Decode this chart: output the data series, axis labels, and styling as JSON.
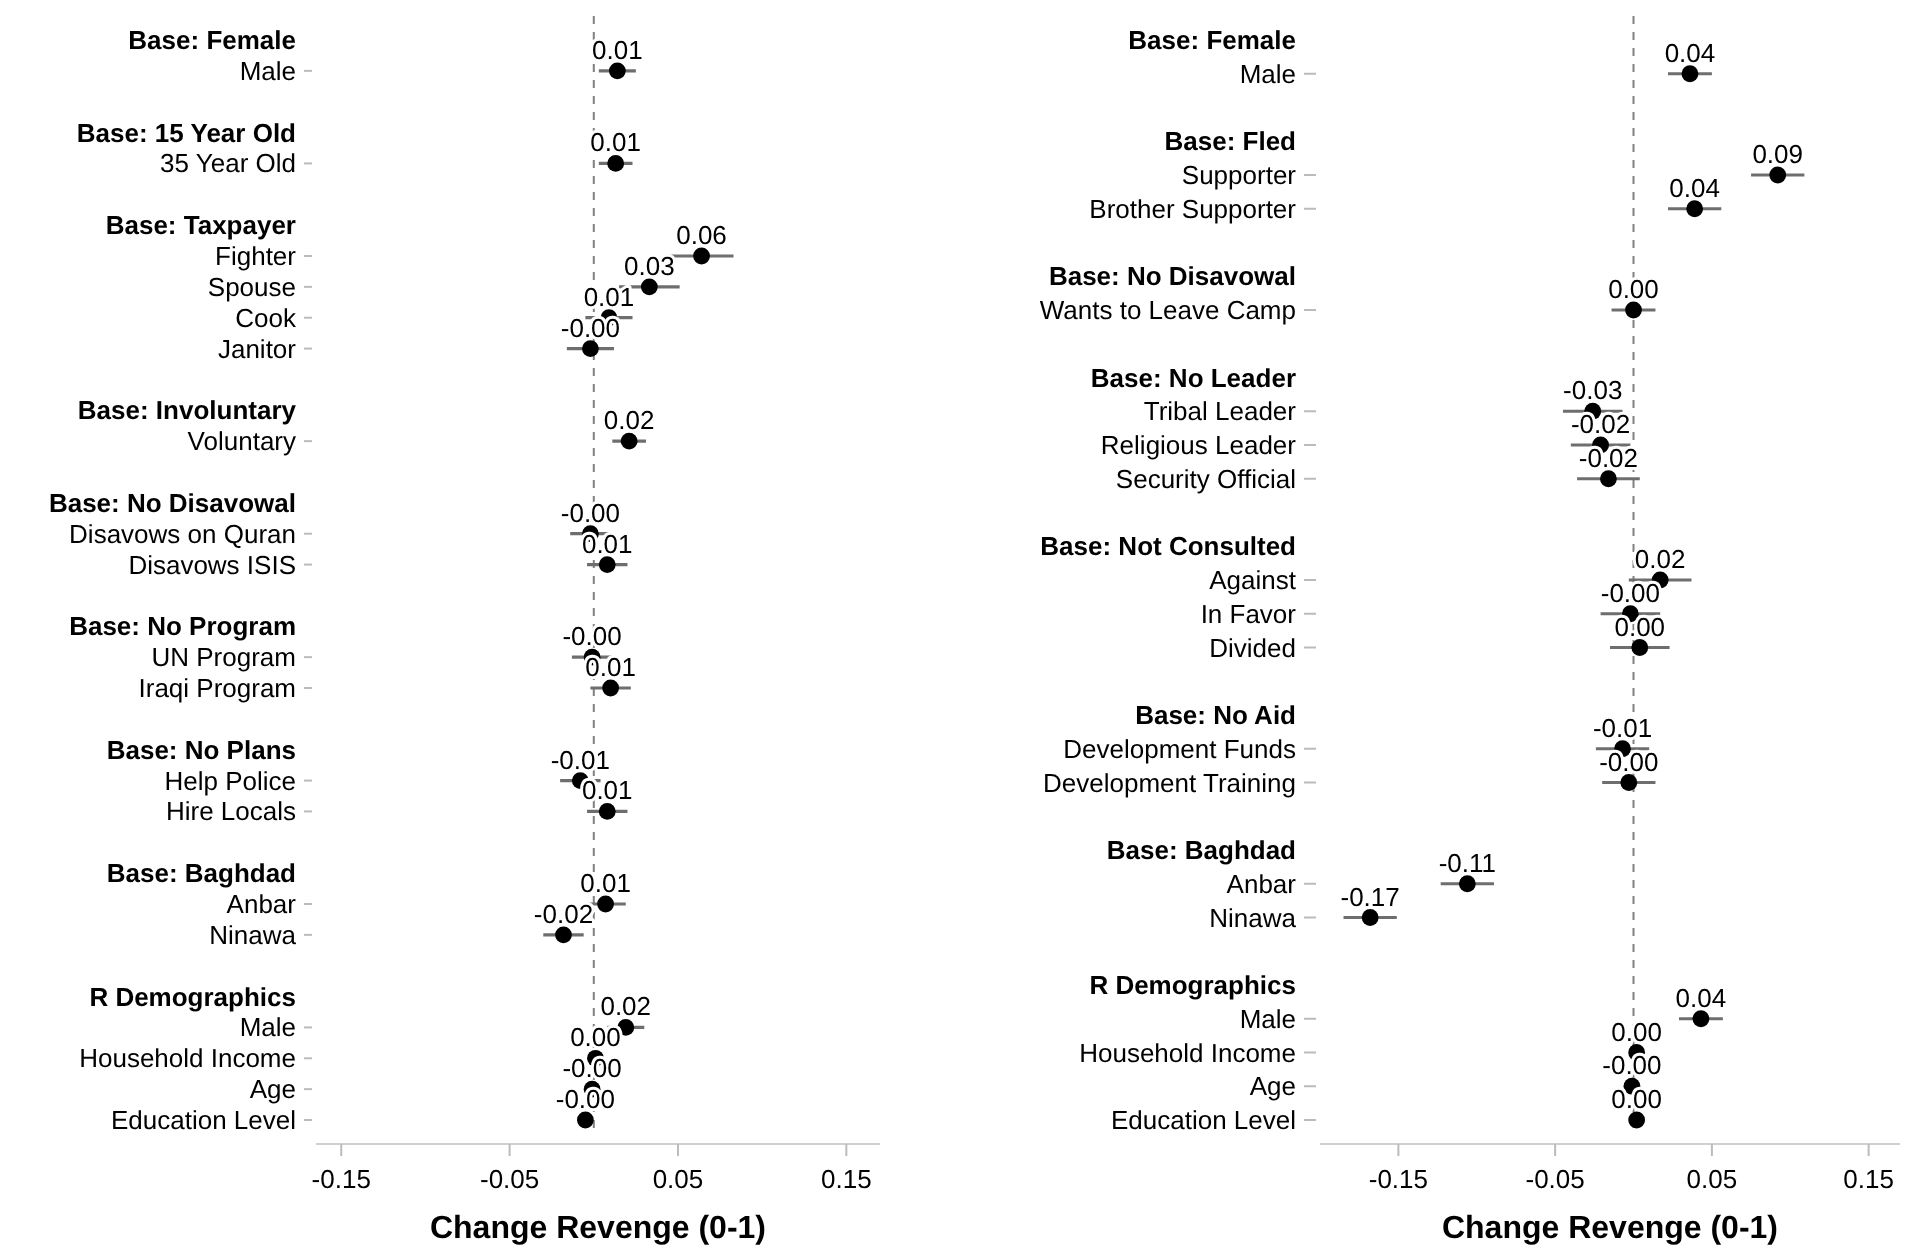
{
  "chart_data": [
    {
      "type": "scatter",
      "orientation": "horizontal",
      "marker": "circle",
      "xlabel": "Change Revenge (0-1)",
      "xlim": [
        -0.165,
        0.17
      ],
      "xticks": [
        -0.15,
        -0.05,
        0.05,
        0.15
      ],
      "ref_lines": [
        {
          "axis": "x",
          "value": 0,
          "line_style": "dashed",
          "color": "#808080"
        }
      ],
      "categories": [
        "Base: Female",
        "Male",
        null,
        "Base: 15 Year Old",
        "35 Year Old",
        null,
        "Base: Taxpayer",
        "Fighter",
        "Spouse",
        "Cook",
        "Janitor",
        null,
        "Base: Involuntary",
        "Voluntary",
        null,
        "Base: No Disavowal",
        "Disavows on Quran",
        "Disavows ISIS",
        null,
        "Base: No Program",
        "UN Program",
        "Iraqi Program",
        null,
        "Base: No Plans",
        "Help Police",
        "Hire Locals",
        null,
        "Base: Baghdad",
        "Anbar",
        "Ninawa",
        null,
        "R Demographics",
        "Male",
        "Household Income",
        "Age",
        "Education Level"
      ],
      "series": [
        {
          "color": "#000000",
          "values": [
            null,
            0.014,
            null,
            null,
            0.013,
            null,
            null,
            0.064,
            0.033,
            0.009,
            -0.002,
            null,
            null,
            0.021,
            null,
            null,
            -0.002,
            0.008,
            null,
            null,
            -0.001,
            0.01,
            null,
            null,
            -0.008,
            0.008,
            null,
            null,
            0.007,
            -0.018,
            null,
            null,
            0.019,
            0.001,
            -0.001,
            -0.005
          ],
          "errors": [
            null,
            0.011,
            null,
            null,
            0.01,
            null,
            null,
            0.019,
            0.018,
            0.014,
            0.014,
            null,
            null,
            0.01,
            null,
            null,
            0.012,
            0.012,
            null,
            null,
            0.012,
            0.012,
            null,
            null,
            0.012,
            0.012,
            null,
            null,
            0.012,
            0.012,
            null,
            null,
            0.011,
            0.004,
            0.003,
            0.003
          ],
          "value_labels": [
            null,
            "0.01",
            null,
            null,
            "0.01",
            null,
            null,
            "0.06",
            "0.03",
            "0.01",
            "-0.00",
            null,
            null,
            "0.02",
            null,
            null,
            "-0.00",
            "0.01",
            null,
            null,
            "-0.00",
            "0.01",
            null,
            null,
            "-0.01",
            "0.01",
            null,
            null,
            "0.01",
            "-0.02",
            null,
            null,
            "0.02",
            "0.00",
            "-0.00",
            "-0.00"
          ]
        }
      ]
    },
    {
      "type": "scatter",
      "orientation": "horizontal",
      "marker": "circle",
      "xlabel": "Change Revenge (0-1)",
      "xlim": [
        -0.2,
        0.17
      ],
      "xticks": [
        -0.15,
        -0.05,
        0.05,
        0.15
      ],
      "ref_lines": [
        {
          "axis": "x",
          "value": 0,
          "line_style": "dashed",
          "color": "#808080"
        }
      ],
      "categories": [
        "Base: Female",
        "Male",
        null,
        "Base: Fled",
        "Supporter",
        "Brother Supporter",
        null,
        "Base: No Disavowal",
        "Wants to Leave Camp",
        null,
        "Base: No Leader",
        "Tribal Leader",
        "Religious Leader",
        "Security Official",
        null,
        "Base: Not Consulted",
        "Against",
        "In Favor",
        "Divided",
        null,
        "Base: No Aid",
        "Development Funds",
        "Development Training",
        null,
        "Base: Baghdad",
        "Anbar",
        "Ninawa",
        null,
        "R Demographics",
        "Male",
        "Household Income",
        "Age",
        "Education Level"
      ],
      "series": [
        {
          "color": "#000000",
          "values": [
            null,
            0.036,
            null,
            null,
            0.092,
            0.039,
            null,
            null,
            0.0,
            null,
            null,
            -0.026,
            -0.021,
            -0.016,
            null,
            null,
            0.017,
            -0.002,
            0.004,
            null,
            null,
            -0.007,
            -0.003,
            null,
            null,
            -0.106,
            -0.168,
            null,
            null,
            0.043,
            0.002,
            -0.001,
            0.002
          ],
          "errors": [
            null,
            0.014,
            null,
            null,
            0.017,
            0.017,
            null,
            null,
            0.014,
            null,
            null,
            0.019,
            0.019,
            0.02,
            null,
            null,
            0.02,
            0.019,
            0.019,
            null,
            null,
            0.017,
            0.017,
            null,
            null,
            0.017,
            0.017,
            null,
            null,
            0.014,
            0.004,
            0.003,
            0.003
          ],
          "value_labels": [
            null,
            "0.04",
            null,
            null,
            "0.09",
            "0.04",
            null,
            null,
            "0.00",
            null,
            null,
            "-0.03",
            "-0.02",
            "-0.02",
            null,
            null,
            "0.02",
            "-0.00",
            "0.00",
            null,
            null,
            "-0.01",
            "-0.00",
            null,
            null,
            "-0.11",
            "-0.17",
            null,
            null,
            "0.04",
            "0.00",
            "-0.00",
            "0.00"
          ]
        }
      ]
    }
  ]
}
